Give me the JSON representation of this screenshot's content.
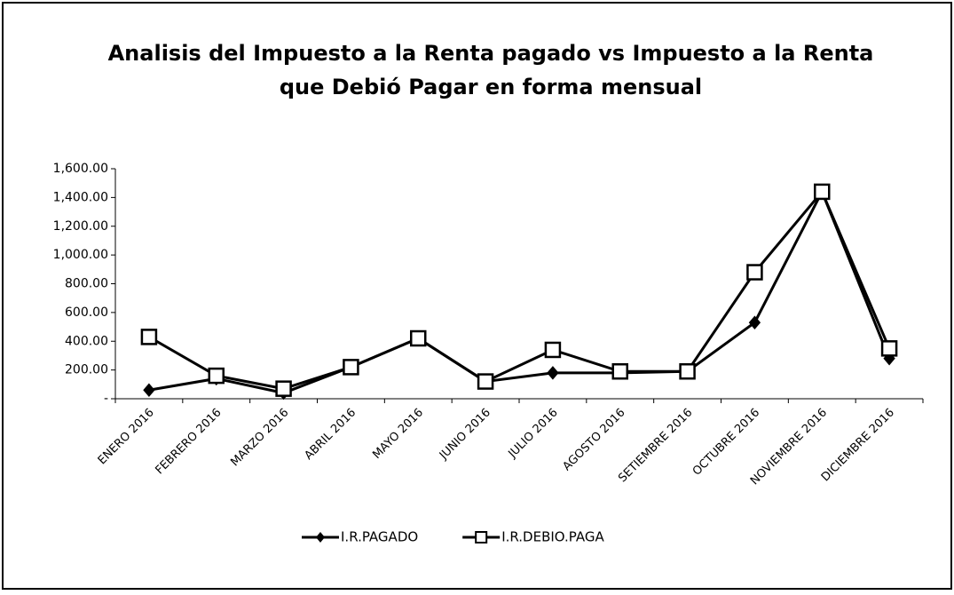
{
  "chart_data": {
    "type": "line",
    "title": "Analisis del Impuesto a la Renta pagado vs Impuesto a la Renta",
    "subtitle": "que Debió Pagar en forma mensual",
    "categories": [
      "ENERO 2016",
      "FEBRERO 2016",
      "MARZO 2016",
      "ABRIL 2016",
      "MAYO 2016",
      "JUNIO 2016",
      "JULIO 2016",
      "AGOSTO 2016",
      "SETIEMBRE 2016",
      "OCTUBRE 2016",
      "NOVIEMBRE 2016",
      "DICIEMBRE 2016"
    ],
    "series": [
      {
        "name": "I.R.PAGADO",
        "color": "#000000",
        "marker": "diamond",
        "values": [
          60,
          140,
          40,
          220,
          420,
          120,
          180,
          180,
          190,
          530,
          1440,
          280
        ]
      },
      {
        "name": "I.R.DEBIO.PAGA",
        "color": "#000000",
        "marker": "square",
        "values": [
          430,
          160,
          70,
          220,
          420,
          120,
          340,
          190,
          190,
          880,
          1440,
          350
        ]
      }
    ],
    "ylim": [
      0,
      1600
    ],
    "yticks": [
      {
        "value": 0,
        "label": "-"
      },
      {
        "value": 200,
        "label": "200.00"
      },
      {
        "value": 400,
        "label": "400.00"
      },
      {
        "value": 600,
        "label": "600.00"
      },
      {
        "value": 800,
        "label": "800.00"
      },
      {
        "value": 1000,
        "label": "1,000.00"
      },
      {
        "value": 1200,
        "label": "1,200.00"
      },
      {
        "value": 1400,
        "label": "1,400.00"
      },
      {
        "value": 1600,
        "label": "1,600.00"
      }
    ],
    "grid": false,
    "legend": "bottom"
  }
}
